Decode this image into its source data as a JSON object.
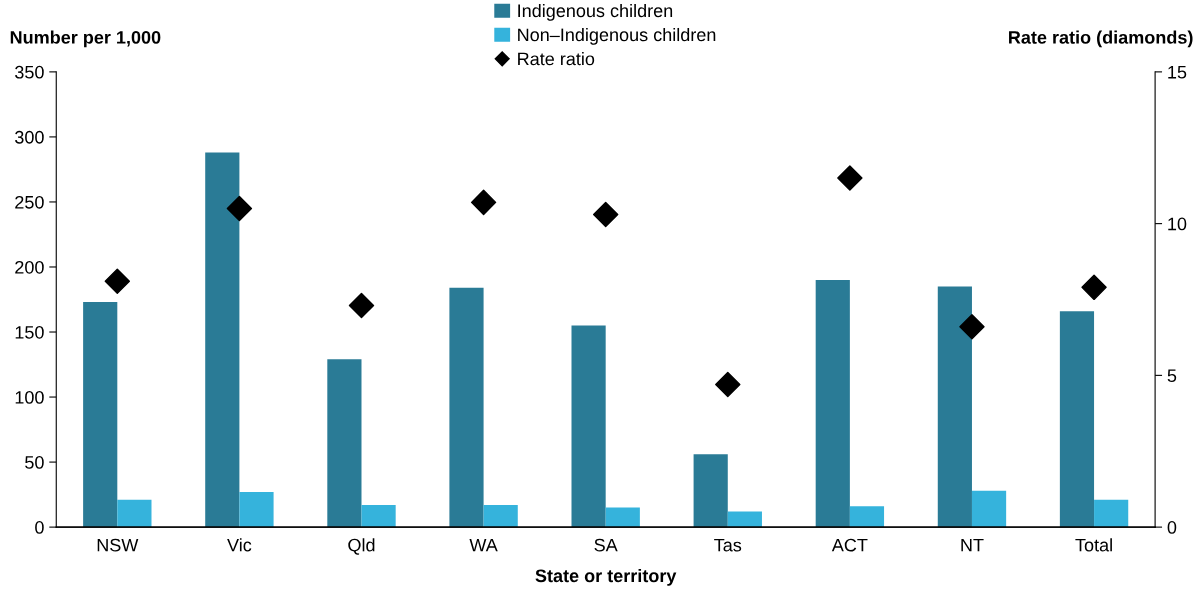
{
  "chart_data": {
    "type": "bar",
    "xlabel": "State or territory",
    "ylabel": "Number per 1,000",
    "y2label": "Rate ratio (diamonds)",
    "categories": [
      "NSW",
      "Vic",
      "Qld",
      "WA",
      "SA",
      "Tas",
      "ACT",
      "NT",
      "Total"
    ],
    "series": [
      {
        "name": "Indigenous children",
        "color": "#2a7b96",
        "values": [
          173,
          288,
          129,
          184,
          155,
          56,
          190,
          185,
          166
        ]
      },
      {
        "name": "Non–Indigenous children",
        "color": "#35b3dc",
        "values": [
          21,
          27,
          17,
          17,
          15,
          12,
          16,
          28,
          21
        ]
      },
      {
        "name": "Rate ratio",
        "type": "scatter",
        "axis": "y2",
        "marker": "diamond",
        "color": "#000000",
        "values": [
          8.1,
          10.5,
          7.3,
          10.7,
          10.3,
          4.7,
          11.5,
          6.6,
          7.9
        ]
      }
    ],
    "ylim": [
      0,
      350
    ],
    "yticks": [
      0,
      50,
      100,
      150,
      200,
      250,
      300,
      350
    ],
    "y2lim": [
      0,
      15
    ],
    "y2ticks": [
      0,
      5,
      10,
      15
    ],
    "grid": false,
    "legend": "top"
  }
}
